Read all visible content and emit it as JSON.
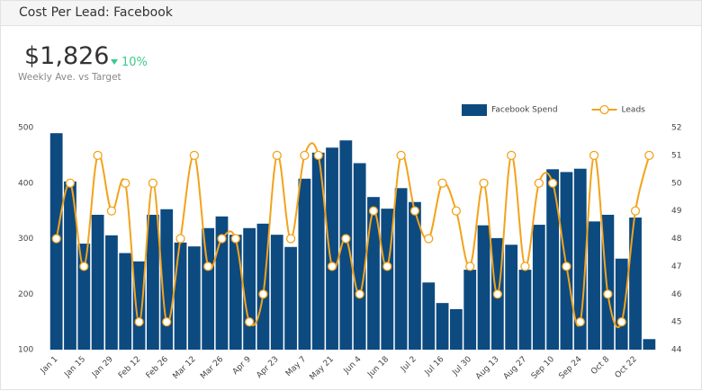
{
  "header": {
    "title": "Cost Per Lead: Facebook"
  },
  "kpi": {
    "value": "$1,826",
    "change": "10%",
    "caption": "Weekly Ave. vs Target"
  },
  "chart_data": {
    "type": "bar-line",
    "categories": [
      "Jan 1",
      null,
      "Jan 15",
      null,
      "Jan 29",
      null,
      "Feb 12",
      null,
      "Feb 26",
      null,
      "Mar 12",
      null,
      "Mar 26",
      null,
      "Apr 9",
      null,
      "Apr 23",
      null,
      "May 7",
      null,
      "May 21",
      null,
      "Jun 4",
      null,
      "Jun 18",
      null,
      "Jul 2",
      null,
      "Jul 16",
      null,
      "Jul 30",
      null,
      "Aug 13",
      null,
      "Aug 27",
      null,
      "Sep 10",
      null,
      "Sep 24",
      null,
      "Oct 8",
      null,
      "Oct 22",
      null
    ],
    "series": [
      {
        "name": "Facebook Spend",
        "color": "#0d4a80",
        "values": [
          490,
          403,
          291,
          343,
          306,
          274,
          259,
          343,
          353,
          293,
          286,
          319,
          340,
          307,
          319,
          327,
          307,
          285,
          408,
          455,
          464,
          477,
          436,
          375,
          354,
          391,
          366,
          221,
          184,
          173,
          244,
          324,
          301,
          289,
          244,
          325,
          425,
          420,
          426,
          331,
          343,
          264,
          338,
          119
        ]
      },
      {
        "name": "Leads",
        "color": "#f2a31c",
        "axis": "y2",
        "values": [
          48,
          50,
          47,
          51,
          49,
          50,
          45,
          50,
          45,
          48,
          51,
          47,
          48,
          48,
          45,
          46,
          51,
          48,
          51,
          51,
          47,
          48,
          46,
          49,
          47,
          51,
          49,
          48,
          50,
          49,
          47,
          50,
          46,
          51,
          47,
          50,
          50,
          47,
          45,
          51,
          46,
          45,
          49,
          51
        ]
      }
    ],
    "ylim": [
      100,
      500
    ],
    "yticks": [
      100,
      200,
      300,
      400,
      500
    ],
    "y2lim": [
      44,
      52
    ],
    "y2ticks": [
      44,
      45,
      46,
      47,
      48,
      49,
      50,
      51,
      52
    ],
    "legend": "top-right"
  }
}
